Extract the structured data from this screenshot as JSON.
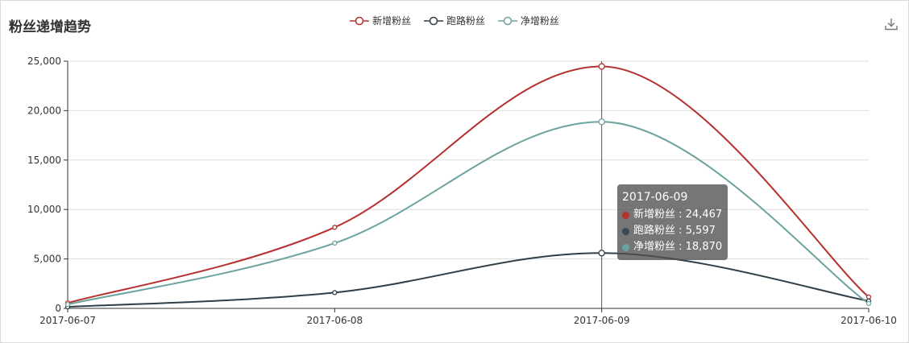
{
  "title": "粉丝递增趋势",
  "colors": {
    "new": "#b5302f",
    "lost": "#2f3f4a",
    "net": "#6aa3a0"
  },
  "icons": {
    "download": "download-icon"
  },
  "chart_data": {
    "type": "line",
    "categories": [
      "2017-06-07",
      "2017-06-08",
      "2017-06-09",
      "2017-06-10"
    ],
    "ylim": [
      0,
      25000
    ],
    "yticks": [
      0,
      5000,
      10000,
      15000,
      20000,
      25000
    ],
    "ytick_labels": [
      "0",
      "5,000",
      "10,000",
      "15,000",
      "20,000",
      "25,000"
    ],
    "grid": true,
    "legend_position": "top-center",
    "smooth": true,
    "series": [
      {
        "name": "新增粉丝",
        "values": [
          550,
          8200,
          24467,
          1150
        ],
        "color": "#b5302f"
      },
      {
        "name": "跑路粉丝",
        "values": [
          150,
          1600,
          5597,
          750
        ],
        "color": "#2f3f4a"
      },
      {
        "name": "净增粉丝",
        "values": [
          400,
          6600,
          18870,
          500
        ],
        "color": "#6aa3a0"
      }
    ]
  },
  "tooltip": {
    "title": "2017-06-09",
    "rows": [
      {
        "label": "新增粉丝 : 24,467",
        "color": "#b5302f"
      },
      {
        "label": "跑路粉丝 : 5,597",
        "color": "#2f3f4a"
      },
      {
        "label": "净增粉丝 : 18,870",
        "color": "#6aa3a0"
      }
    ]
  }
}
